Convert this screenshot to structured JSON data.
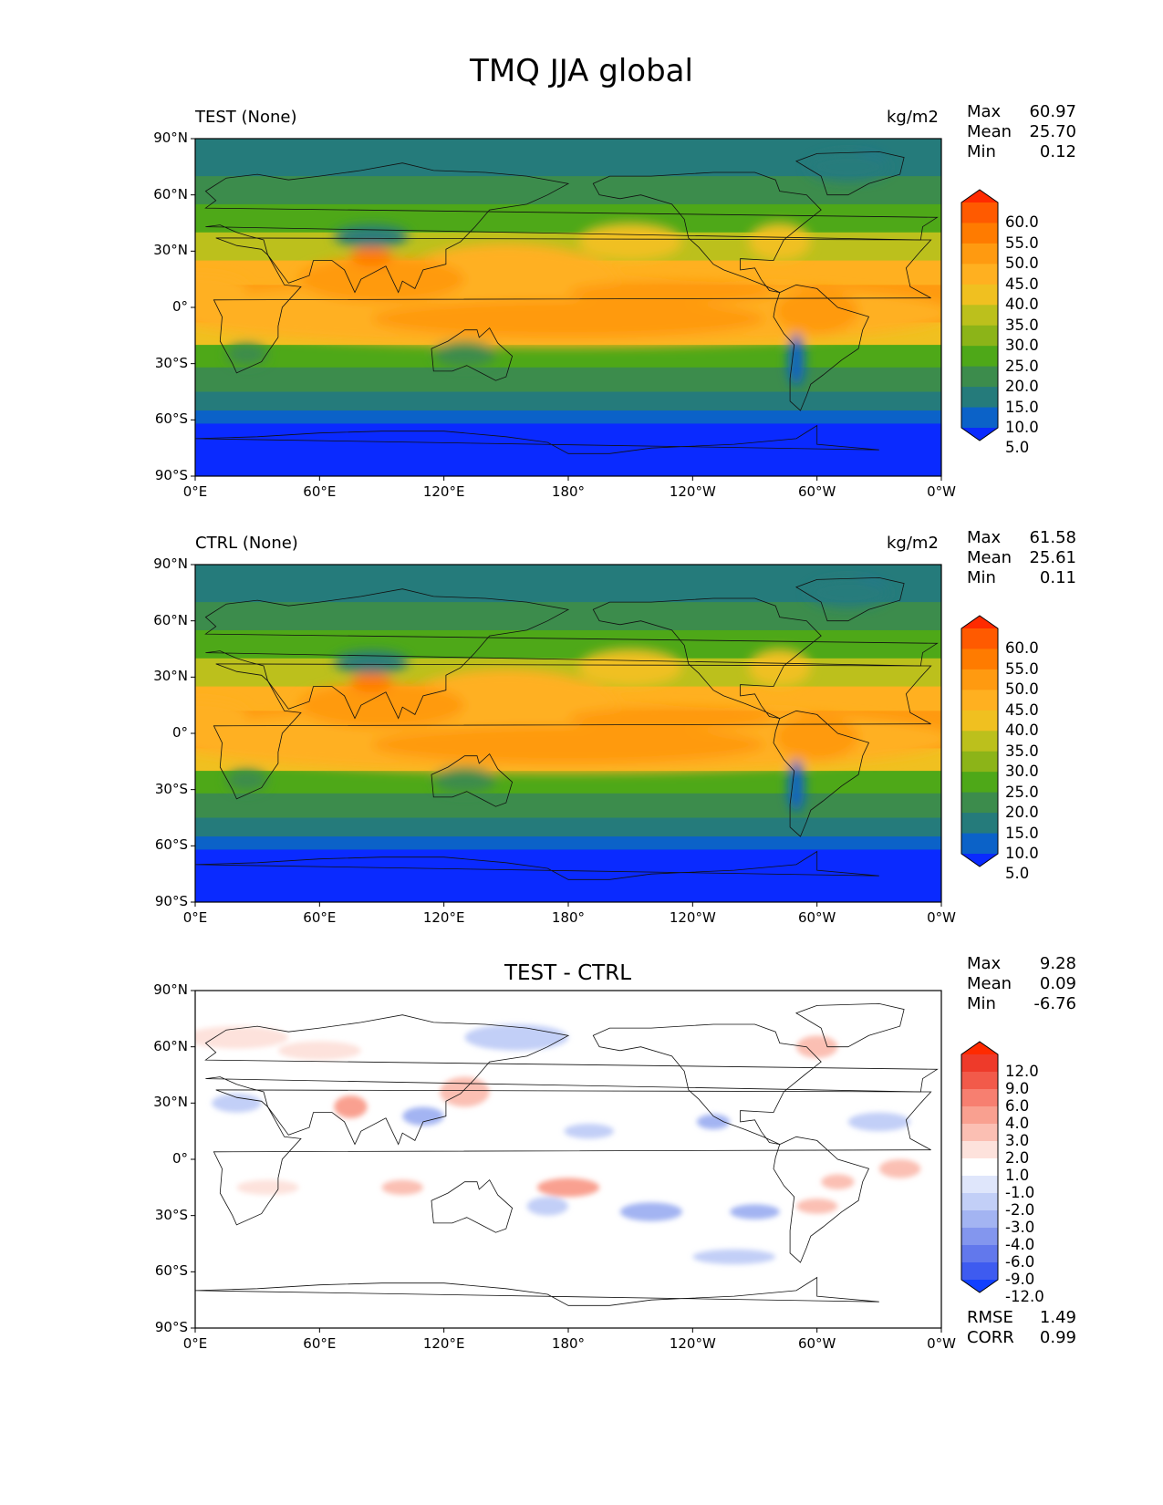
{
  "figure": {
    "title": "TMQ JJA global"
  },
  "axes": {
    "lat_ticks": [
      "90°N",
      "60°N",
      "30°N",
      "0°",
      "30°S",
      "60°S",
      "90°S"
    ],
    "lon_ticks": [
      "0°E",
      "60°E",
      "120°E",
      "180°",
      "120°W",
      "60°W",
      "0°W"
    ]
  },
  "panels": [
    {
      "id": "test",
      "left_title": "TEST (None)",
      "center_title": "",
      "units": "kg/m2",
      "stats": [
        {
          "label": "Max",
          "value": "60.97"
        },
        {
          "label": "Mean",
          "value": "25.70"
        },
        {
          "label": "Min",
          "value": "0.12"
        }
      ],
      "colorbar": {
        "labels": [
          "60.0",
          "55.0",
          "50.0",
          "45.0",
          "40.0",
          "35.0",
          "30.0",
          "25.0",
          "20.0",
          "15.0",
          "10.0",
          "5.0"
        ],
        "colors": [
          "#ff2a00",
          "#ff5a00",
          "#ff7b00",
          "#ff9a10",
          "#ffb020",
          "#f0c020",
          "#bcc01c",
          "#8cb418",
          "#4ea818",
          "#3c8c4c",
          "#257b7b",
          "#0b62c8",
          "#0a2aff"
        ]
      }
    },
    {
      "id": "ctrl",
      "left_title": "CTRL (None)",
      "center_title": "",
      "units": "kg/m2",
      "stats": [
        {
          "label": "Max",
          "value": "61.58"
        },
        {
          "label": "Mean",
          "value": "25.61"
        },
        {
          "label": "Min",
          "value": "0.11"
        }
      ],
      "colorbar": {
        "labels": [
          "60.0",
          "55.0",
          "50.0",
          "45.0",
          "40.0",
          "35.0",
          "30.0",
          "25.0",
          "20.0",
          "15.0",
          "10.0",
          "5.0"
        ],
        "colors": [
          "#ff2a00",
          "#ff5a00",
          "#ff7b00",
          "#ff9a10",
          "#ffb020",
          "#f0c020",
          "#bcc01c",
          "#8cb418",
          "#4ea818",
          "#3c8c4c",
          "#257b7b",
          "#0b62c8",
          "#0a2aff"
        ]
      }
    },
    {
      "id": "diff",
      "left_title": "",
      "center_title": "TEST - CTRL",
      "units": "",
      "stats": [
        {
          "label": "Max",
          "value": "9.28"
        },
        {
          "label": "Mean",
          "value": "0.09"
        },
        {
          "label": "Min",
          "value": "-6.76"
        }
      ],
      "colorbar": {
        "labels": [
          "12.0",
          "9.0",
          "6.0",
          "4.0",
          "3.0",
          "2.0",
          "1.0",
          "-1.0",
          "-2.0",
          "-3.0",
          "-4.0",
          "-6.0",
          "-9.0",
          "-12.0"
        ],
        "colors": [
          "#ff2a00",
          "#ee3a2a",
          "#f25a4a",
          "#f77f70",
          "#f9a090",
          "#fbbfb3",
          "#fde2dc",
          "#ffffff",
          "#dfe6fb",
          "#c2cff7",
          "#a3b4f2",
          "#8396ee",
          "#6278ec",
          "#3e5bf0",
          "#1140ff"
        ]
      },
      "extra_stats": [
        {
          "label": "RMSE",
          "value": "1.49"
        },
        {
          "label": "CORR",
          "value": "0.99"
        }
      ]
    }
  ]
}
